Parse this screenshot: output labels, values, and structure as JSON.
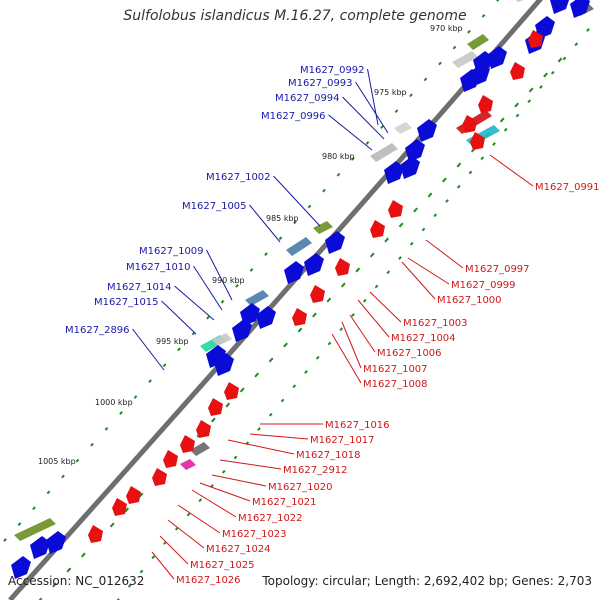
{
  "title": "Sulfolobus islandicus M.16.27, complete genome",
  "accession": "Accession: NC_012632",
  "topology": "Topology: circular; Length: 2,692,402 bp; Genes: 2,703",
  "ticks": [
    "970 kbp",
    "975 kbp",
    "980 kbp",
    "985 kbp",
    "990 kbp",
    "995 kbp",
    "1000 kbp",
    "1005 kbp"
  ],
  "forward_genes": [
    "M1627_0992",
    "M1627_0993",
    "M1627_0994",
    "M1627_0996",
    "M1627_1002",
    "M1627_1005",
    "M1627_1009",
    "M1627_1010",
    "M1627_1014",
    "M1627_1015",
    "M1627_2896"
  ],
  "reverse_genes": [
    "M1627_0991",
    "M1627_0997",
    "M1627_0999",
    "M1627_1000",
    "M1627_1003",
    "M1627_1004",
    "M1627_1006",
    "M1627_1007",
    "M1627_1008",
    "M1627_1016",
    "M1627_1017",
    "M1627_1018",
    "M1627_2912",
    "M1627_1020",
    "M1627_1021",
    "M1627_1022",
    "M1627_1023",
    "M1627_1024",
    "M1627_1025",
    "M1627_1026"
  ],
  "colors": {
    "forward_label": "#1a1aa8",
    "reverse_label": "#d01818",
    "forward_arrow": "#0b0bd8",
    "reverse_arrow": "#e81010",
    "backbone": "#8c8c8c",
    "gc_dots": "#1f8a1f"
  }
}
